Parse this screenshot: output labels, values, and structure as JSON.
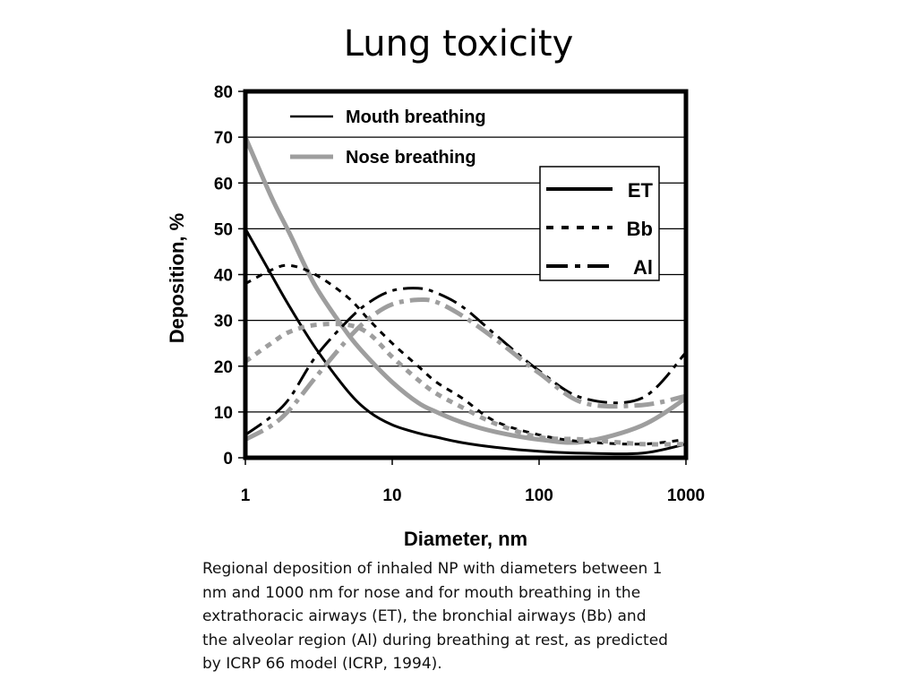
{
  "slide": {
    "title": "Lung toxicity",
    "caption_lines": [
      "Regional deposition of inhaled NP with diameters between 1",
      "nm and 1000 nm for nose and for mouth breathing in the",
      "extrathoracic airways (ET), the bronchial airways (Bb) and",
      "the alveolar region (Al) during breathing at rest, as predicted",
      "by ICRP 66 model (ICRP, 1994)."
    ]
  },
  "chart_data": {
    "type": "line",
    "xlabel": "Diameter, nm",
    "ylabel": "Deposition, %",
    "xscale": "log",
    "xlim": [
      1,
      1000
    ],
    "ylim": [
      0,
      80
    ],
    "x_ticks": [
      1,
      10,
      100,
      1000
    ],
    "x_tick_labels": [
      "1",
      "10",
      "100",
      "1000"
    ],
    "y_ticks": [
      0,
      10,
      20,
      30,
      40,
      50,
      60,
      70,
      80
    ],
    "y_tick_labels": [
      "0",
      "10",
      "20",
      "30",
      "40",
      "50",
      "60",
      "70",
      "80"
    ],
    "grid": "horizontal",
    "legend_breathing": {
      "placement": "top-left",
      "entries": [
        {
          "label": "Mouth breathing",
          "color": "#000000"
        },
        {
          "label": "Nose breathing",
          "color": "#9e9e9e"
        }
      ]
    },
    "legend_region": {
      "placement": "top-right",
      "entries": [
        {
          "label": "ET",
          "style": "solid"
        },
        {
          "label": "Bb",
          "style": "dotted"
        },
        {
          "label": "Al",
          "style": "dash-dot"
        }
      ]
    },
    "series": [
      {
        "breathing": "Mouth breathing",
        "region": "ET",
        "color": "#000000",
        "style": "solid",
        "x": [
          1,
          1.5,
          2,
          3,
          5,
          7,
          10,
          15,
          20,
          30,
          50,
          100,
          200,
          500,
          1000
        ],
        "y": [
          50,
          40,
          33,
          24,
          14.5,
          10,
          7.2,
          5.4,
          4.5,
          3.3,
          2.3,
          1.4,
          1,
          1,
          3
        ]
      },
      {
        "breathing": "Nose breathing",
        "region": "ET",
        "color": "#9e9e9e",
        "style": "solid",
        "x": [
          1,
          1.5,
          2,
          3,
          5,
          7,
          10,
          15,
          20,
          30,
          50,
          100,
          200,
          500,
          1000
        ],
        "y": [
          70,
          57,
          49,
          37.5,
          27,
          21.5,
          16.5,
          12,
          10,
          7.7,
          5.7,
          4,
          3.5,
          7,
          13
        ]
      },
      {
        "breathing": "Mouth breathing",
        "region": "Bb",
        "color": "#000000",
        "style": "dotted",
        "x": [
          1,
          1.5,
          2,
          3,
          5,
          7,
          10,
          15,
          20,
          30,
          50,
          100,
          200,
          500,
          1000
        ],
        "y": [
          38,
          41,
          42,
          40,
          35,
          30,
          25,
          20,
          16.5,
          13,
          8,
          5,
          3.5,
          3,
          4
        ]
      },
      {
        "breathing": "Nose breathing",
        "region": "Bb",
        "color": "#9e9e9e",
        "style": "dotted",
        "x": [
          1,
          1.5,
          2,
          3,
          5,
          7,
          10,
          15,
          20,
          30,
          50,
          100,
          200,
          500,
          1000
        ],
        "y": [
          21,
          25,
          27.5,
          29,
          29,
          27,
          22,
          17,
          14,
          11,
          7.5,
          4.5,
          4,
          3,
          3
        ]
      },
      {
        "breathing": "Mouth breathing",
        "region": "Al",
        "color": "#000000",
        "style": "dash-dot",
        "x": [
          1,
          1.5,
          2,
          3,
          5,
          7,
          10,
          15,
          20,
          30,
          50,
          100,
          200,
          500,
          1000
        ],
        "y": [
          5,
          9,
          13,
          22,
          30,
          34,
          36.5,
          37,
          36,
          33,
          27,
          19,
          13,
          13,
          23
        ]
      },
      {
        "breathing": "Nose breathing",
        "region": "Al",
        "color": "#9e9e9e",
        "style": "dash-dot",
        "x": [
          1,
          1.5,
          2,
          3,
          5,
          7,
          10,
          15,
          20,
          30,
          50,
          100,
          200,
          500,
          1000
        ],
        "y": [
          4,
          7,
          10.5,
          17.5,
          26,
          30.5,
          33.5,
          34.5,
          34,
          31,
          26,
          18.5,
          12,
          11.5,
          13.5
        ]
      }
    ]
  }
}
